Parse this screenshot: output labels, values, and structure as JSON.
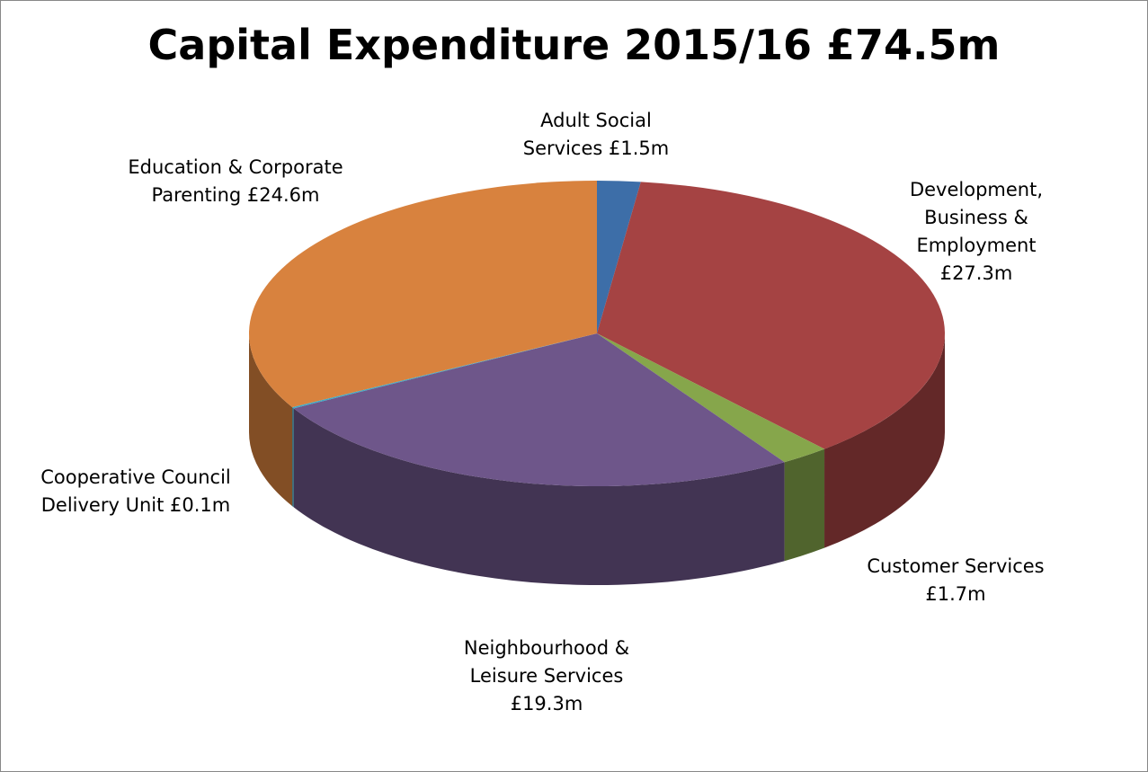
{
  "chart_data": {
    "type": "pie3d",
    "title": "Capital Expenditure 2015/16 £74.5m",
    "categories": [
      "Adult Social Services",
      "Development, Business & Employment",
      "Customer Services",
      "Neighbourhood & Leisure Services",
      "Cooperative Council Delivery Unit",
      "Education & Corporate Parenting"
    ],
    "values": [
      1.5,
      27.3,
      1.7,
      19.3,
      0.1,
      24.6
    ],
    "value_labels": [
      "£1.5m",
      "£27.3m",
      "£1.7m",
      "£19.3m",
      "£0.1m",
      "£24.6m"
    ],
    "colors": [
      "#3d6ea8",
      "#a54343",
      "#86a64b",
      "#6e568a",
      "#3fa9c5",
      "#d8823e"
    ]
  }
}
